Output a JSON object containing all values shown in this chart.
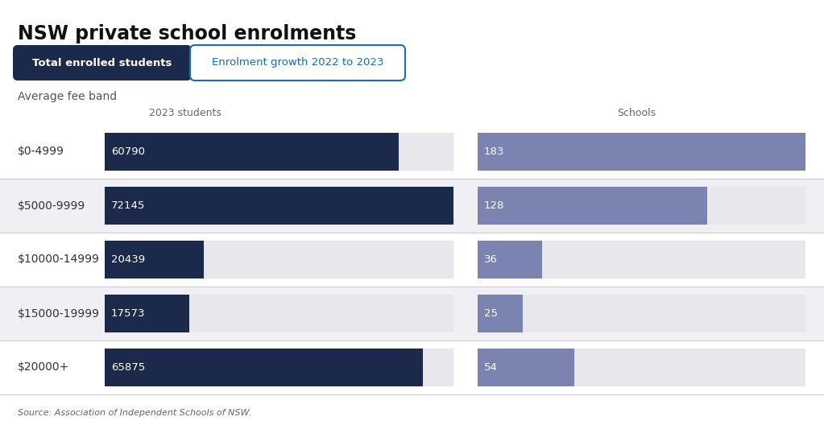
{
  "title": "NSW private school enrolments",
  "button1_text": "Total enrolled students",
  "button2_text": "Enrolment growth 2022 to 2023",
  "subtitle": "Average fee band",
  "source_text": "Source: Association of Independent Schools of NSW.",
  "categories": [
    "$0-4999",
    "$5000-9999",
    "$10000-14999",
    "$15000-19999",
    "$20000+"
  ],
  "students": [
    60790,
    72145,
    20439,
    17573,
    65875
  ],
  "schools": [
    183,
    128,
    36,
    25,
    54
  ],
  "students_max": 72145,
  "schools_max": 183,
  "students_col_label": "2023 students",
  "schools_col_label": "Schools",
  "bar_color_students": "#1b2a4a",
  "bar_color_schools": "#7b84b0",
  "bg_color": "#ffffff",
  "row_bg_alt": "#f0f0f4",
  "row_bg_main": "#ffffff",
  "label_color": "#ffffff",
  "cat_label_color": "#333333",
  "header_color": "#666666",
  "button1_bg": "#1b2a4a",
  "button1_text_color": "#ffffff",
  "button2_text_color": "#1a6bb5",
  "button2_border_color": "#1a6bb5",
  "title_color": "#111111",
  "subtitle_color": "#555555",
  "source_color": "#666666",
  "divider_color": "#cccccc"
}
